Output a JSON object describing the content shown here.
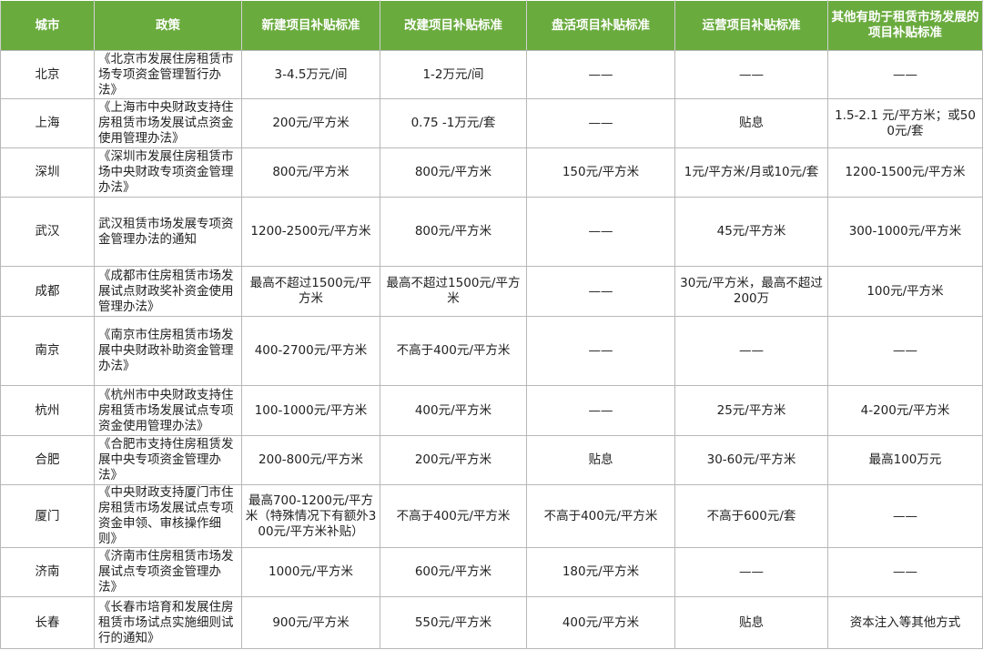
{
  "table": {
    "header": [
      "城市",
      "政策",
      "新建项目补贴标准",
      "改建项目补贴标准",
      "盘活项目补贴标准",
      "运营项目补贴标准",
      "其他有助于租赁市场发展的项目补贴标准"
    ],
    "rows": [
      [
        "北京",
        "《北京市发展住房租赁市场专项资金管理暂行办法》",
        "3-4.5万元/间",
        "1-2万元/间",
        "——",
        "——",
        "——"
      ],
      [
        "上海",
        "《上海市中央财政支持住房租赁市场发展试点资金使用管理办法》",
        "200元/平方米",
        "0.75 -1万元/套",
        "——",
        "贴息",
        "1.5-2.1 元/平方米；或500元/套"
      ],
      [
        "深圳",
        "《深圳市发展住房租赁市场中央财政专项资金管理办法》",
        "800元/平方米",
        "800元/平方米",
        "150元/平方米",
        "1元/平方米/月或10元/套",
        "1200-1500元/平方米"
      ],
      [
        "武汉",
        "武汉租赁市场发展专项资金管理办法的通知",
        "1200-2500元/平方米",
        "800元/平方米",
        "——",
        "45元/平方米",
        "300-1000元/平方米"
      ],
      [
        "成都",
        "《成都市住房租赁市场发展试点财政奖补资金使用管理办法》",
        "最高不超过1500元/平方米",
        "最高不超过1500元/平方米",
        "——",
        "30元/平方米，最高不超过200万",
        "100元/平方米"
      ],
      [
        "南京",
        "《南京市住房租赁市场发展中央财政补助资金管理办法》",
        "400-2700元/平方米",
        "不高于400元/平方米",
        "——",
        "——",
        "——"
      ],
      [
        "杭州",
        "《杭州市中央财政支持住房租赁市场发展试点专项资金使用管理办法》",
        "100-1000元/平方米",
        "400元/平方米",
        "——",
        "25元/平方米",
        "4-200元/平方米"
      ],
      [
        "合肥",
        "《合肥市支持住房租赁发展中央专项资金管理办法》",
        "200-800元/平方米",
        "200元/平方米",
        "贴息",
        "30-60元/平方米",
        "最高100万元"
      ],
      [
        "厦门",
        "《中央财政支持厦门市住房租赁市场发展试点专项资金申领、审核操作细则》",
        "最高700-1200元/平方米（特殊情况下有额外300元/平方米补贴）",
        "不高于400元/平方米",
        "不高于400元/平方米",
        "不高于600元/套",
        "——"
      ],
      [
        "济南",
        "《济南市住房租赁市场发展试点专项资金管理办法》",
        "1000元/平方米",
        "600元/平方米",
        "180元/平方米",
        "——",
        "——"
      ],
      [
        "长春",
        "《长春市培育和发展住房租赁市场试点实施细则试行的通知》",
        "900元/平方米",
        "550元/平方米",
        "400元/平方米",
        "贴息",
        "资本注入等其他方式"
      ]
    ]
  }
}
